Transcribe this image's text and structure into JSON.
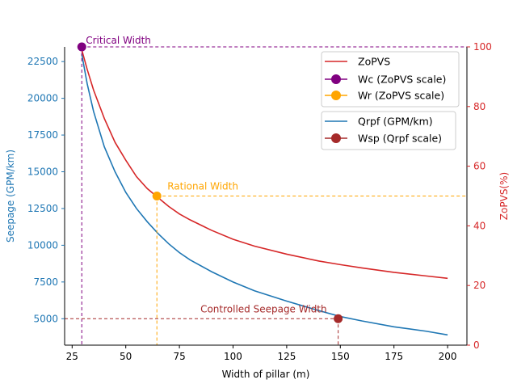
{
  "chart_data": {
    "type": "line",
    "xlabel": "Width of pillar (m)",
    "ylabel_left": "Seepage (GPM/km)",
    "ylabel_right": "ZoPVS(%)",
    "xlim": [
      21.5,
      209
    ],
    "ylim_left": [
      3200,
      23500
    ],
    "ylim_right": [
      0,
      100
    ],
    "x_ticks": [
      25,
      50,
      75,
      100,
      125,
      150,
      175,
      200
    ],
    "y_left_ticks": [
      5000,
      7500,
      10000,
      12500,
      15000,
      17500,
      20000,
      22500
    ],
    "y_right_ticks": [
      0,
      20,
      40,
      60,
      80,
      100
    ],
    "colors": {
      "zopvs": "#d62728",
      "qrpf": "#1f77b4",
      "wc": "#800080",
      "wr": "#ffa500",
      "wsp": "#a52a2a",
      "left_axis": "#1f77b4",
      "right_axis": "#d62728"
    },
    "series": [
      {
        "name": "ZoPVS",
        "axis": "right",
        "x": [
          29.5,
          32,
          35,
          40,
          45,
          50,
          55,
          60,
          65,
          70,
          75,
          80,
          90,
          100,
          110,
          125,
          140,
          150,
          160,
          175,
          190,
          200
        ],
        "y": [
          99,
          92.5,
          85.5,
          76,
          68,
          62,
          56.5,
          52.5,
          49.5,
          46.5,
          44,
          42,
          38.5,
          35.5,
          33.2,
          30.5,
          28.2,
          27,
          25.9,
          24.4,
          23.2,
          22.4
        ]
      },
      {
        "name": "Qrpf (GPM/km)",
        "axis": "left",
        "x": [
          29.5,
          32,
          35,
          40,
          45,
          50,
          55,
          60,
          65,
          70,
          75,
          80,
          90,
          100,
          110,
          125,
          140,
          150,
          160,
          175,
          190,
          200
        ],
        "y": [
          23000,
          21000,
          19100,
          16700,
          15000,
          13600,
          12500,
          11600,
          10800,
          10100,
          9500,
          9000,
          8200,
          7500,
          6900,
          6200,
          5550,
          5150,
          4850,
          4450,
          4150,
          3900
        ]
      }
    ],
    "markers": [
      {
        "name": "Wc (ZoPVS scale)",
        "x": 29.5,
        "y": 100,
        "axis": "right",
        "annotation": "Critical Width"
      },
      {
        "name": "Wr (ZoPVS scale)",
        "x": 64.5,
        "y": 50,
        "axis": "right",
        "annotation": "Rational Width"
      },
      {
        "name": "Wsp (Qrpf scale)",
        "x": 149,
        "y": 5000,
        "axis": "left",
        "annotation": "Controlled Seepage Width"
      }
    ],
    "legend_top": [
      "ZoPVS",
      "Wc (ZoPVS scale)",
      "Wr (ZoPVS scale)"
    ],
    "legend_bottom": [
      "Qrpf (GPM/km)",
      "Wsp (Qrpf scale)"
    ],
    "legend_placement": "top-right"
  }
}
